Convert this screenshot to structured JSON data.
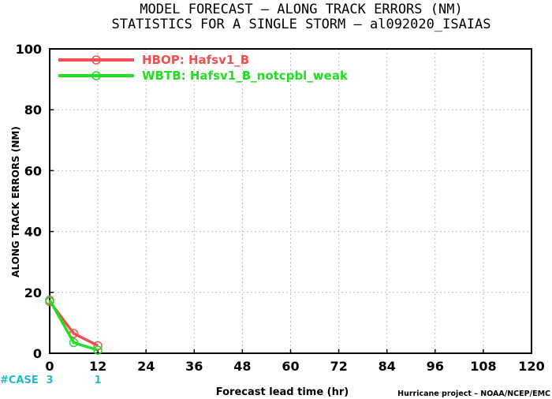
{
  "header": {
    "title_line1": "MODEL FORECAST – ALONG TRACK ERRORS (NM)",
    "title_line2": "STATISTICS FOR A SINGLE STORM – al092020_ISAIAS"
  },
  "footer": {
    "credit": "Hurricane project – NOAA/NCEP/EMC",
    "case_label": "#CASE"
  },
  "chart_data": {
    "type": "line",
    "xlabel": "Forecast lead time (hr)",
    "ylabel": "ALONG TRACK ERRORS (NM)",
    "xlim": [
      0,
      120
    ],
    "ylim": [
      0,
      100
    ],
    "xticks": [
      0,
      12,
      24,
      36,
      48,
      60,
      72,
      84,
      96,
      108,
      120
    ],
    "yticks": [
      0,
      20,
      40,
      60,
      80,
      100
    ],
    "grid": true,
    "legend_position": "top-left",
    "series": [
      {
        "name": "HBOP: Hafsv1_B",
        "color": "#f05050",
        "x": [
          0,
          6,
          12
        ],
        "y": [
          17.0,
          6.5,
          2.5
        ]
      },
      {
        "name": "WBTB: Hafsv1_B_notcpbl_weak",
        "color": "#22dd22",
        "x": [
          0,
          6,
          12
        ],
        "y": [
          17.5,
          3.5,
          1.0
        ]
      }
    ],
    "case_counts": [
      {
        "x": 0,
        "count": "3"
      },
      {
        "x": 12,
        "count": "1"
      }
    ],
    "case_color": "#22bbcc"
  }
}
